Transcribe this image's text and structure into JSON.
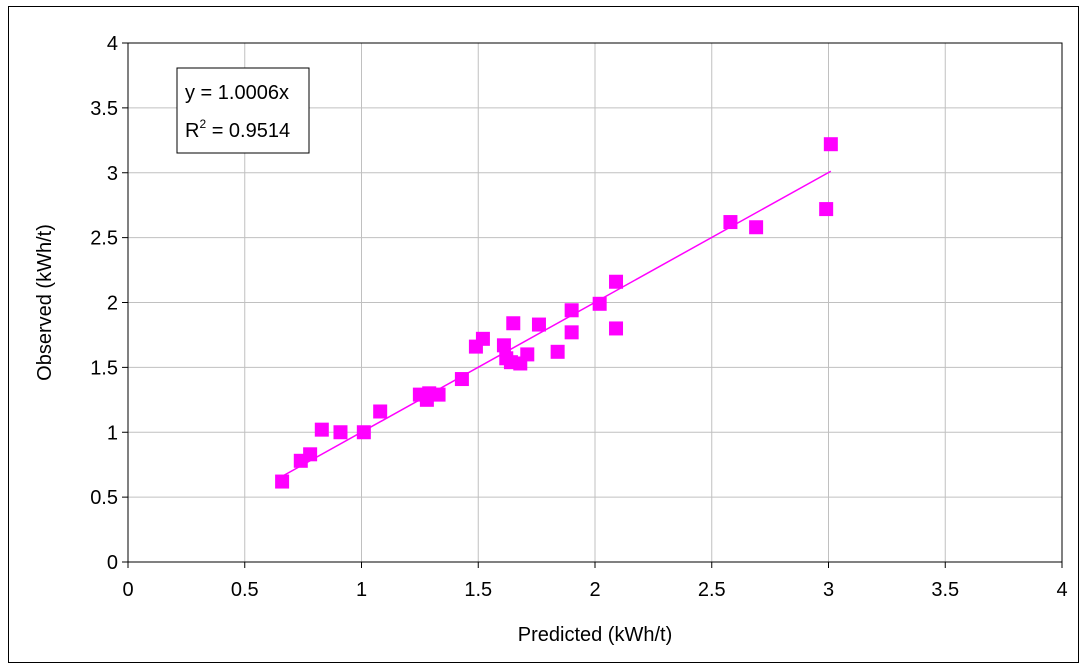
{
  "chart_data": {
    "type": "scatter",
    "xlabel": "Predicted (kWh/t)",
    "ylabel": "Observed (kWh/t)",
    "xlim": [
      0,
      4
    ],
    "ylim": [
      0,
      4
    ],
    "x_ticks": [
      "0",
      "0.5",
      "1",
      "1.5",
      "2",
      "2.5",
      "3",
      "3.5",
      "4"
    ],
    "y_ticks": [
      "0",
      "0.5",
      "1",
      "1.5",
      "2",
      "2.5",
      "3",
      "3.5",
      "4"
    ],
    "grid": true,
    "marker_color": "#ff00ff",
    "trendline": {
      "slope": 1.0006,
      "x_range": [
        0.65,
        3.01
      ],
      "color": "#ff00ff",
      "equation": "y = 1.0006x",
      "r_squared_prefix": "R",
      "r_squared_exp": "2",
      "r_squared_value": " = 0.9514"
    },
    "points": [
      [
        0.66,
        0.62
      ],
      [
        0.74,
        0.78
      ],
      [
        0.78,
        0.83
      ],
      [
        0.83,
        1.02
      ],
      [
        0.91,
        1.0
      ],
      [
        1.01,
        1.0
      ],
      [
        1.08,
        1.16
      ],
      [
        1.25,
        1.29
      ],
      [
        1.28,
        1.25
      ],
      [
        1.29,
        1.3
      ],
      [
        1.33,
        1.29
      ],
      [
        1.43,
        1.41
      ],
      [
        1.49,
        1.66
      ],
      [
        1.52,
        1.72
      ],
      [
        1.61,
        1.67
      ],
      [
        1.62,
        1.57
      ],
      [
        1.64,
        1.54
      ],
      [
        1.65,
        1.84
      ],
      [
        1.68,
        1.53
      ],
      [
        1.71,
        1.6
      ],
      [
        1.76,
        1.83
      ],
      [
        1.84,
        1.62
      ],
      [
        1.9,
        1.77
      ],
      [
        1.9,
        1.94
      ],
      [
        2.02,
        1.99
      ],
      [
        2.09,
        2.16
      ],
      [
        2.09,
        1.8
      ],
      [
        2.58,
        2.62
      ],
      [
        2.69,
        2.58
      ],
      [
        2.99,
        2.72
      ],
      [
        3.01,
        3.22
      ]
    ]
  }
}
